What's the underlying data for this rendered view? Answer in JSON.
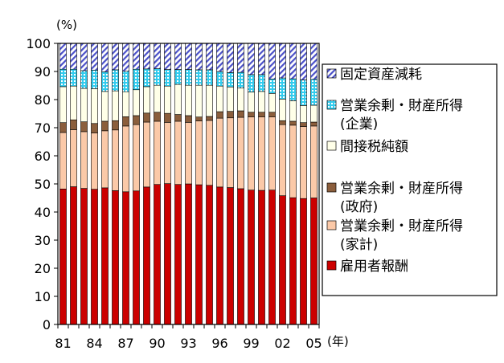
{
  "chart_data": {
    "type": "bar",
    "stacked": true,
    "y_unit": "(%)",
    "x_unit": "(年)",
    "ylim": [
      0,
      100
    ],
    "yticks": [
      0,
      10,
      20,
      30,
      40,
      50,
      60,
      70,
      80,
      90,
      100
    ],
    "categories": [
      "81",
      "82",
      "83",
      "84",
      "85",
      "86",
      "87",
      "88",
      "89",
      "90",
      "91",
      "92",
      "93",
      "94",
      "95",
      "96",
      "97",
      "98",
      "99",
      "00",
      "01",
      "02",
      "03",
      "04",
      "05"
    ],
    "xtick_labels": [
      "81",
      "84",
      "87",
      "90",
      "93",
      "96",
      "99",
      "02",
      "05"
    ],
    "series": [
      {
        "name": "雇用者報酬",
        "color": "#cc0000",
        "pattern": "solid",
        "values": [
          48.2,
          49.0,
          48.4,
          48.1,
          48.6,
          47.6,
          47.2,
          47.5,
          48.9,
          49.8,
          50.1,
          49.8,
          50.0,
          49.7,
          49.5,
          48.9,
          48.7,
          48.3,
          47.8,
          47.7,
          47.8,
          45.8,
          45.1,
          44.8,
          45.0
        ]
      },
      {
        "name": "営業余剰・財産所得\n(家計)",
        "color": "#fbc9a8",
        "pattern": "solid",
        "values": [
          20.1,
          20.3,
          20.2,
          20.0,
          20.3,
          21.6,
          23.4,
          23.6,
          23.1,
          22.5,
          21.8,
          22.5,
          21.9,
          22.7,
          23.1,
          24.5,
          24.8,
          25.4,
          26.0,
          26.1,
          26.0,
          25.3,
          25.8,
          25.6,
          25.6
        ]
      },
      {
        "name": "営業余剰・財産所得\n(政府)",
        "color": "#8b5e3c",
        "pattern": "solid",
        "values": [
          3.5,
          3.5,
          3.5,
          3.4,
          3.4,
          3.3,
          3.3,
          3.2,
          3.2,
          3.2,
          3.2,
          2.4,
          2.4,
          1.4,
          1.4,
          2.3,
          2.3,
          2.3,
          1.7,
          1.7,
          1.7,
          1.4,
          1.4,
          1.4,
          1.4
        ]
      },
      {
        "name": "間接税純額",
        "color": "#ffffe8",
        "pattern": "solid",
        "values": [
          12.8,
          12.0,
          11.9,
          12.4,
          10.6,
          10.6,
          8.9,
          9.2,
          9.4,
          9.6,
          9.7,
          10.7,
          10.8,
          11.3,
          11.1,
          9.1,
          8.7,
          8.1,
          7.2,
          7.4,
          6.7,
          7.7,
          7.3,
          6.1,
          6.0
        ]
      },
      {
        "name": "営業余剰・財産所得\n(企業)",
        "color": "#33ccee",
        "pattern": "dots",
        "values": [
          6.2,
          6.0,
          6.3,
          6.6,
          7.0,
          7.5,
          7.3,
          7.3,
          6.3,
          5.9,
          5.9,
          5.3,
          5.6,
          5.5,
          5.5,
          5.2,
          5.1,
          5.6,
          6.2,
          6.0,
          5.1,
          7.5,
          7.8,
          9.1,
          9.2
        ]
      },
      {
        "name": "固定資産減耗",
        "color": "#4a50c8",
        "pattern": "hatch",
        "values": [
          9.2,
          9.2,
          9.7,
          9.5,
          10.1,
          9.4,
          9.9,
          9.2,
          9.1,
          9.0,
          9.3,
          9.3,
          9.3,
          9.4,
          9.4,
          10.0,
          10.4,
          10.3,
          11.1,
          11.1,
          12.7,
          12.3,
          12.6,
          13.0,
          12.8
        ]
      }
    ],
    "legend_order": [
      5,
      4,
      3,
      2,
      1,
      0
    ],
    "legend_position": "right",
    "grid": false
  }
}
